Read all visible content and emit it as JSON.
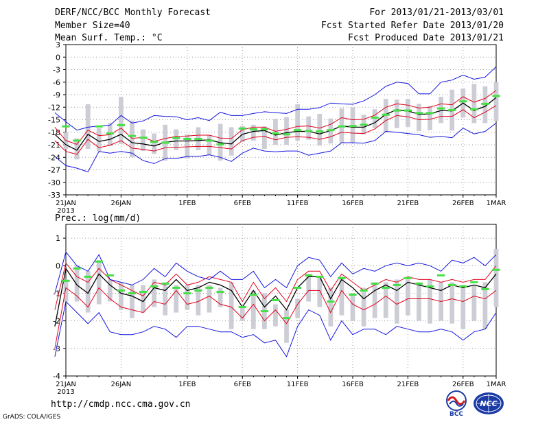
{
  "header": {
    "title": "DERF/NCC/BCC Monthly Forecast",
    "member_size": "Member Size=40",
    "variable": "Mean Surf. Temp.: °C",
    "period": "For 2013/01/21-2013/03/01",
    "started": "Fcst Started Refer Date 2013/01/20",
    "produced": "Fcst Produced Date 2013/01/21"
  },
  "footer": {
    "url": "http://cmdp.ncc.cma.gov.cn",
    "credit": "GrADS: COLA/IGES",
    "logo_bcc": "BCC",
    "logo_ncc": "NCC"
  },
  "colors": {
    "mean": "#000000",
    "sd": "#e0001a",
    "range": "#1414e0",
    "obs": "#44e044",
    "box": "#cdcdd6"
  },
  "chart_data": [
    {
      "type": "line",
      "id": "temperature",
      "title": "Mean Surf. Temp.: °C",
      "ylim": [
        -33,
        3
      ],
      "yticks": [
        "3",
        "0",
        "-3",
        "-6",
        "-9",
        "-12",
        "-15",
        "-18",
        "-21",
        "-24",
        "-27",
        "-30",
        "-33"
      ],
      "xlim": [
        1,
        40
      ],
      "xticks": [
        {
          "day": 1,
          "label": "21JAN",
          "sub": "2013"
        },
        {
          "day": 6,
          "label": "26JAN"
        },
        {
          "day": 12,
          "label": "1FEB"
        },
        {
          "day": 17,
          "label": "6FEB"
        },
        {
          "day": 22,
          "label": "11FEB"
        },
        {
          "day": 27,
          "label": "16FEB"
        },
        {
          "day": 32,
          "label": "21FEB"
        },
        {
          "day": 37,
          "label": "26FEB"
        },
        {
          "day": 40,
          "label": "1MAR"
        }
      ],
      "grid": true,
      "series": [
        {
          "name": "ensemble mean",
          "values": [
            -18.5,
            -21,
            -22.3,
            -18.5,
            -20.2,
            -19.7,
            -18.5,
            -20.5,
            -20.8,
            -21.3,
            -20.4,
            -20.1,
            -20.1,
            -20,
            -19.8,
            -20.5,
            -20.8,
            -18.5,
            -17.8,
            -17.6,
            -18.7,
            -18.1,
            -17.8,
            -17.8,
            -18.4,
            -17.6,
            -16.5,
            -16.8,
            -16.8,
            -15.7,
            -13.7,
            -12.6,
            -12.9,
            -13.7,
            -13.6,
            -12.8,
            -12.9,
            -11,
            -12.8,
            -11.8,
            -9.7
          ]
        },
        {
          "name": "mean + sd",
          "values": [
            -16.8,
            -20,
            -20.9,
            -17.5,
            -18.8,
            -18.6,
            -17,
            -19.5,
            -19.2,
            -20.2,
            -19.5,
            -19,
            -18.9,
            -18.7,
            -18.7,
            -19.4,
            -19.5,
            -17.4,
            -16.8,
            -16.8,
            -17.8,
            -17.3,
            -16.6,
            -16.5,
            -17,
            -16.1,
            -14.5,
            -15,
            -14.9,
            -13.9,
            -12,
            -11.2,
            -11.5,
            -12.2,
            -12,
            -11.2,
            -11.4,
            -9.5,
            -10.8,
            -9.9,
            -8
          ]
        },
        {
          "name": "mean - sd",
          "values": [
            -20,
            -22.6,
            -23.3,
            -19.7,
            -21.7,
            -21.1,
            -20,
            -21.8,
            -22.1,
            -22.5,
            -21.7,
            -21.6,
            -21.5,
            -21.4,
            -21.4,
            -21.7,
            -22,
            -20,
            -19.2,
            -19,
            -19.8,
            -19.2,
            -19.1,
            -19.2,
            -19.7,
            -19.1,
            -18,
            -18.2,
            -18.3,
            -17.2,
            -15.2,
            -14,
            -14.3,
            -15,
            -14.9,
            -14.2,
            -14.2,
            -12.6,
            -14.5,
            -13.2,
            -11.6
          ]
        },
        {
          "name": "ensemble max",
          "values": [
            -13.3,
            -15.5,
            -17.5,
            -16.8,
            -16.5,
            -16.3,
            -14,
            -15.8,
            -15.3,
            -14,
            -14.2,
            -14.3,
            -15,
            -14.5,
            -15.2,
            -13.2,
            -14,
            -14,
            -13.5,
            -13.1,
            -13.3,
            -13.5,
            -12.5,
            -12.5,
            -12.1,
            -11,
            -11.2,
            -11.3,
            -10.5,
            -9,
            -7,
            -6,
            -6.3,
            -8.8,
            -8.8,
            -6,
            -5.5,
            -4.3,
            -5.3,
            -4.8,
            -2.3
          ]
        },
        {
          "name": "ensemble min",
          "values": [
            -23.8,
            -26,
            -26.6,
            -27.5,
            -22.6,
            -23,
            -22.6,
            -23,
            -24.8,
            -25.5,
            -24.3,
            -24.3,
            -23.8,
            -23.8,
            -23.4,
            -24,
            -25,
            -23,
            -21.8,
            -22.5,
            -22.7,
            -22.5,
            -22.5,
            -23.5,
            -23,
            -22.5,
            -20.5,
            -20.5,
            -20.6,
            -20,
            -17.8,
            -18,
            -18.3,
            -18.6,
            -19.2,
            -19,
            -19.3,
            -17,
            -18.4,
            -17.8,
            -15.8
          ]
        }
      ],
      "boxes": [
        [
          -21.5,
          -16
        ],
        [
          -22,
          -18
        ],
        [
          -24.5,
          -19.5
        ],
        [
          -22,
          -11.3
        ],
        [
          -22.5,
          -17
        ],
        [
          -21.3,
          -15.8
        ],
        [
          -20.8,
          -9.5
        ],
        [
          -24,
          -15.2
        ],
        [
          -22.5,
          -17.3
        ],
        [
          -23.2,
          -18.3
        ],
        [
          -24.8,
          -16.2
        ],
        [
          -22.3,
          -17.3
        ],
        [
          -24.3,
          -18.5
        ],
        [
          -22.3,
          -16.8
        ],
        [
          -23.5,
          -18.7
        ],
        [
          -24.8,
          -16
        ],
        [
          -23.6,
          -16.8
        ],
        [
          -20.3,
          -16.5
        ],
        [
          -20,
          -16.2
        ],
        [
          -22,
          -16.6
        ],
        [
          -21,
          -14.8
        ],
        [
          -21,
          -14.4
        ],
        [
          -20,
          -11.3
        ],
        [
          -19.8,
          -14.2
        ],
        [
          -21.2,
          -13.6
        ],
        [
          -20.7,
          -14.7
        ],
        [
          -20.6,
          -12.3
        ],
        [
          -20.4,
          -12
        ],
        [
          -18.5,
          -13.8
        ],
        [
          -17,
          -12.5
        ],
        [
          -18,
          -10
        ],
        [
          -17,
          -10.2
        ],
        [
          -16.7,
          -10
        ],
        [
          -17.7,
          -11.2
        ],
        [
          -17.5,
          -11.7
        ],
        [
          -15.8,
          -9.5
        ],
        [
          -17.6,
          -7.8
        ],
        [
          -14.5,
          -7.5
        ],
        [
          -15.8,
          -6.4
        ],
        [
          -15.8,
          -7
        ],
        [
          -15.3,
          -6
        ]
      ],
      "observed": [
        -16.6,
        -16.6,
        -20,
        null,
        -16.6,
        -18.3,
        -16.3,
        -18.9,
        -19.3,
        -20.3,
        -20.5,
        -19.4,
        -19.6,
        -19.6,
        -20,
        -20.9,
        null,
        -17.1,
        -17.3,
        -17.3,
        -18.3,
        -18.5,
        -17.5,
        -17.7,
        -17.8,
        -17.5,
        -16.6,
        -16.5,
        -16.2,
        -14.5,
        -13.8,
        -12.8,
        -12.8,
        -13.4,
        -13.4,
        -12.3,
        -12.7,
        -10.6,
        -12.5,
        -11.2,
        -9.3
      ]
    },
    {
      "type": "line",
      "id": "precipitation",
      "title": "Prec.: log(mm/d)",
      "ylim": [
        -4,
        1.5
      ],
      "yticks": [
        "1",
        "0",
        "-1",
        "-2",
        "-3",
        "-4"
      ],
      "xlim": [
        1,
        40
      ],
      "xticks": [
        {
          "day": 1,
          "label": "21JAN",
          "sub": "2013"
        },
        {
          "day": 6,
          "label": "26JAN"
        },
        {
          "day": 12,
          "label": "1FEB"
        },
        {
          "day": 17,
          "label": "6FEB"
        },
        {
          "day": 22,
          "label": "11FEB"
        },
        {
          "day": 27,
          "label": "16FEB"
        },
        {
          "day": 32,
          "label": "21FEB"
        },
        {
          "day": 37,
          "label": "26FEB"
        },
        {
          "day": 40,
          "label": "1MAR"
        }
      ],
      "grid": true,
      "series": [
        {
          "name": "ensemble mean",
          "values": [
            -2.2,
            -0.1,
            -0.7,
            -1,
            -0.3,
            -0.7,
            -1,
            -1.1,
            -1.3,
            -0.8,
            -0.9,
            -0.5,
            -0.9,
            -0.8,
            -0.6,
            -0.7,
            -0.9,
            -1.5,
            -0.9,
            -1.5,
            -1.1,
            -1.6,
            -0.8,
            -0.4,
            -0.4,
            -1.2,
            -0.5,
            -0.8,
            -1.2,
            -0.9,
            -0.7,
            -0.9,
            -0.6,
            -0.7,
            -0.8,
            -0.9,
            -0.7,
            -0.8,
            -0.7,
            -0.8,
            -0.3
          ]
        },
        {
          "name": "mean + sd",
          "values": [
            -1.6,
            0.1,
            -0.4,
            -0.6,
            -0.1,
            -0.5,
            -0.7,
            -0.9,
            -1.1,
            -0.6,
            -0.7,
            -0.3,
            -0.7,
            -0.6,
            -0.4,
            -0.5,
            -0.6,
            -1.3,
            -0.6,
            -1.2,
            -0.8,
            -1.3,
            -0.5,
            -0.2,
            -0.2,
            -0.9,
            -0.3,
            -0.6,
            -0.9,
            -0.7,
            -0.5,
            -0.6,
            -0.4,
            -0.5,
            -0.5,
            -0.6,
            -0.5,
            -0.6,
            -0.5,
            -0.5,
            0
          ]
        },
        {
          "name": "mean - sd",
          "values": [
            -3,
            -0.8,
            -1.1,
            -1.5,
            -0.8,
            -1.2,
            -1.5,
            -1.6,
            -1.7,
            -1.3,
            -1.4,
            -0.9,
            -1.4,
            -1.3,
            -1.1,
            -1.4,
            -1.5,
            -1.9,
            -1.4,
            -2,
            -1.6,
            -2.1,
            -1.4,
            -0.9,
            -0.9,
            -1.7,
            -0.9,
            -1.4,
            -1.6,
            -1.4,
            -1.1,
            -1.4,
            -1.2,
            -1.2,
            -1.2,
            -1.3,
            -1.2,
            -1.3,
            -1.1,
            -1.2,
            -0.9
          ]
        },
        {
          "name": "ensemble max",
          "values": [
            -1,
            0.5,
            0,
            -0.2,
            0.4,
            -0.5,
            -0.6,
            -0.7,
            -0.5,
            -0.1,
            -0.4,
            0.1,
            -0.2,
            -0.4,
            -0.5,
            -0.2,
            -0.5,
            -0.5,
            -0.2,
            -0.8,
            -0.5,
            -0.8,
            0,
            0.3,
            0.2,
            -0.4,
            0.1,
            -0.3,
            -0.1,
            -0.2,
            0,
            0.1,
            0,
            0.1,
            0,
            -0.2,
            0.2,
            0.1,
            0.3,
            0,
            0.4
          ]
        },
        {
          "name": "ensemble min",
          "values": [
            -3.3,
            -1.3,
            -1.7,
            -2.1,
            -1.7,
            -2.4,
            -2.5,
            -2.5,
            -2.4,
            -2.2,
            -2.3,
            -2.6,
            -2.2,
            -2.2,
            -2.3,
            -2.4,
            -2.4,
            -2.6,
            -2.5,
            -2.8,
            -2.7,
            -3.3,
            -2.2,
            -1.6,
            -1.8,
            -2.7,
            -2,
            -2.5,
            -2.3,
            -2.3,
            -2.5,
            -2.2,
            -2.3,
            -2.4,
            -2.4,
            -2.3,
            -2.4,
            -2.7,
            -2.4,
            -2.3,
            -1.7
          ]
        },
        {
          "name": "ensemble min (secondary)",
          "values": [
            null,
            null,
            null,
            null,
            null,
            null,
            null,
            null,
            null,
            null,
            null,
            null,
            null,
            null,
            null,
            null,
            null,
            null,
            null,
            null,
            null,
            null,
            null,
            null,
            null,
            null,
            null,
            null,
            null,
            null,
            null,
            null,
            null,
            null,
            null,
            null,
            null,
            null,
            null,
            null,
            null
          ]
        }
      ],
      "boxes": [
        [
          -3.4,
          -1.7
        ],
        [
          -1.3,
          -0.5
        ],
        [
          -1.3,
          0
        ],
        [
          -1.7,
          -0.2
        ],
        [
          -1.4,
          0.2
        ],
        [
          -1.3,
          -0.5
        ],
        [
          -1.6,
          -0.6
        ],
        [
          -1.9,
          -0.7
        ],
        [
          -1.7,
          -0.7
        ],
        [
          -1.5,
          -0.5
        ],
        [
          -1.8,
          -0.6
        ],
        [
          -1.7,
          -0.7
        ],
        [
          -1.6,
          -0.7
        ],
        [
          -1.8,
          -0.7
        ],
        [
          -1.7,
          -0.7
        ],
        [
          -1.5,
          -0.8
        ],
        [
          -2.3,
          -0.6
        ],
        [
          -2,
          -1.5
        ],
        [
          -2.3,
          -0.9
        ],
        [
          -2.3,
          -1
        ],
        [
          -2.2,
          -1.4
        ],
        [
          -2.8,
          -1.6
        ],
        [
          -1.9,
          -1.2
        ],
        [
          -1.3,
          -0.3
        ],
        [
          -1.5,
          -0.4
        ],
        [
          -2.2,
          -0.8
        ],
        [
          -1.8,
          -0.4
        ],
        [
          -2,
          -1
        ],
        [
          -2.2,
          -0.8
        ],
        [
          -1.9,
          -0.6
        ],
        [
          -1.9,
          -0.6
        ],
        [
          -2.1,
          -0.5
        ],
        [
          -1.8,
          -0.5
        ],
        [
          -2,
          -0.6
        ],
        [
          -2.1,
          -0.5
        ],
        [
          -2,
          -0.6
        ],
        [
          -2.1,
          -0.6
        ],
        [
          -2.3,
          -0.7
        ],
        [
          -2,
          -0.7
        ],
        [
          -2.3,
          -0.6
        ],
        [
          -1.5,
          0.6
        ]
      ],
      "observed": [
        -2.25,
        -0.55,
        -0.1,
        -0.4,
        0.15,
        -0.35,
        -0.9,
        -1,
        -0.95,
        -0.75,
        -0.65,
        -0.8,
        -1,
        -0.9,
        -0.8,
        -0.95,
        null,
        -1.5,
        -1.05,
        -1.65,
        -1.25,
        -1.9,
        -0.8,
        -0.35,
        -0.4,
        -1.3,
        -0.45,
        -1.05,
        -0.9,
        -0.65,
        -0.8,
        -0.7,
        -0.45,
        -0.65,
        -0.75,
        -0.35,
        -0.7,
        -0.75,
        -0.6,
        -0.85,
        -0.15
      ]
    }
  ]
}
